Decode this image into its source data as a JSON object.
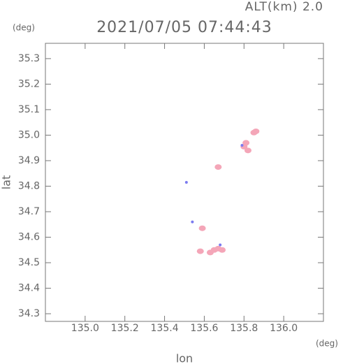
{
  "chart_data": {
    "type": "scatter",
    "title": "2021/07/05 07:44:43",
    "subtitle": "ALT(km) 2.0",
    "x_label": "lon",
    "y_label": "lat",
    "x_unit": "(deg)",
    "y_unit": "(deg)",
    "xlim": [
      134.8,
      136.2
    ],
    "ylim": [
      34.27,
      35.36
    ],
    "xticks": [
      {
        "value": 135.0,
        "label": "135.0"
      },
      135.2,
      135.4,
      135.6,
      135.8,
      {
        "value": 136.0,
        "label": "136.0"
      }
    ],
    "yticks": [
      34.3,
      34.4,
      34.5,
      34.6,
      34.7,
      34.8,
      34.9,
      {
        "value": 35.0,
        "label": "35.0"
      },
      35.1,
      35.2,
      35.3
    ],
    "series": [
      {
        "color": "#f4a6b8",
        "x": [
          135.85,
          135.86,
          135.8,
          135.82,
          135.81,
          135.67,
          135.59,
          135.58,
          135.63,
          135.65,
          135.67,
          135.69
        ],
        "y": [
          35.01,
          35.015,
          34.955,
          34.94,
          34.97,
          34.875,
          34.635,
          34.545,
          34.54,
          34.55,
          34.555,
          34.55
        ]
      },
      {
        "color": "#7b7bf0",
        "x": [
          135.51,
          135.54,
          135.79,
          135.68
        ],
        "y": [
          34.815,
          34.66,
          34.96,
          34.57
        ]
      }
    ]
  }
}
